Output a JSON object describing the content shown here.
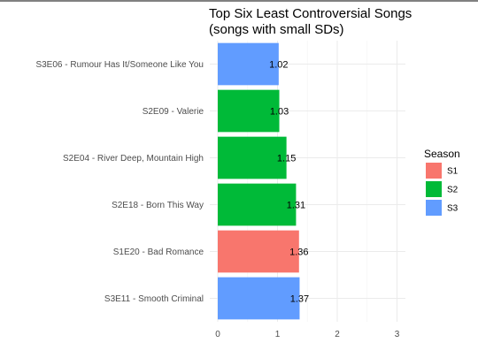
{
  "chart_data": {
    "type": "bar",
    "orientation": "horizontal",
    "title": "Top Six Least Controversial Songs",
    "subtitle": "(songs with small SDs)",
    "xlabel": "",
    "ylabel": "",
    "xlim": [
      0,
      3.2
    ],
    "x_ticks": [
      0,
      1,
      2,
      3
    ],
    "grid": true,
    "legend_position": "right",
    "legend": {
      "title": "Season",
      "entries": [
        {
          "name": "S1",
          "color": "#F8766D"
        },
        {
          "name": "S2",
          "color": "#00BA38"
        },
        {
          "name": "S3",
          "color": "#619CFF"
        }
      ]
    },
    "bars": [
      {
        "label": "S3E06 - Rumour Has It/Someone Like You",
        "value": 1.02,
        "value_label": "1.02",
        "season": "S3"
      },
      {
        "label": "S2E09 - Valerie",
        "value": 1.03,
        "value_label": "1.03",
        "season": "S2"
      },
      {
        "label": "S2E04 - River Deep, Mountain High",
        "value": 1.15,
        "value_label": "1.15",
        "season": "S2"
      },
      {
        "label": "S2E18 - Born This Way",
        "value": 1.31,
        "value_label": "1.31",
        "season": "S2"
      },
      {
        "label": "S1E20 - Bad Romance",
        "value": 1.36,
        "value_label": "1.36",
        "season": "S1"
      },
      {
        "label": "S3E11 - Smooth Criminal",
        "value": 1.37,
        "value_label": "1.37",
        "season": "S3"
      }
    ]
  }
}
